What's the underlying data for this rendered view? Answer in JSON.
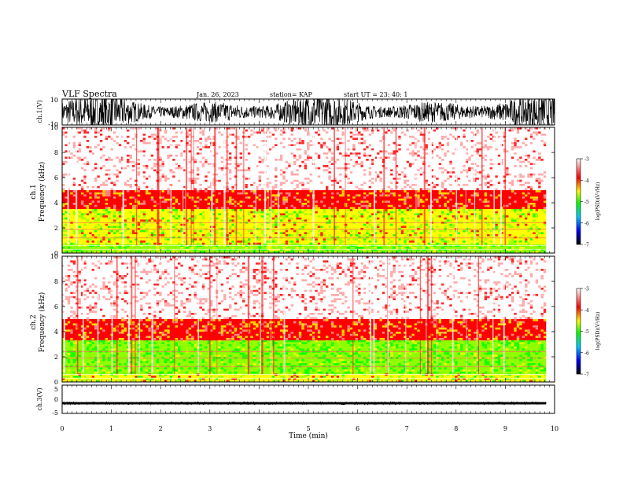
{
  "header": {
    "title": "VLF Spectra",
    "date": "Jan. 26, 2023",
    "station": "station= KAP",
    "start": "start  UT  =   23: 40: 1"
  },
  "chart_data": [
    {
      "type": "line",
      "name": "ch1-waveform",
      "ylabel": "ch.1(V)",
      "ylim": [
        -10,
        10
      ],
      "yticks": [
        10,
        -10
      ],
      "xlim": [
        0,
        10
      ],
      "amplitude_range": [
        -10,
        10
      ]
    },
    {
      "type": "heatmap",
      "name": "ch1-spectrogram",
      "ylabel_line1": "ch.1",
      "ylabel_line2": "Frequency (kHz)",
      "ylim": [
        0,
        10
      ],
      "yticks": [
        0,
        2,
        4,
        6,
        8,
        10
      ],
      "xlim": [
        0,
        9.83
      ],
      "colorbar": {
        "label": "log(PSD)(V²/Hz)",
        "range": [
          -7,
          -3
        ],
        "ticks": [
          -3,
          -4,
          -5,
          -6,
          -7
        ]
      },
      "bands_khz": [
        {
          "from": 0,
          "to": 0.7,
          "level": -5.2
        },
        {
          "from": 0.7,
          "to": 3.5,
          "level": -5.0
        },
        {
          "from": 3.5,
          "to": 5.0,
          "level": -4.2
        },
        {
          "from": 5.0,
          "to": 10,
          "level": -3.4
        }
      ]
    },
    {
      "type": "heatmap",
      "name": "ch2-spectrogram",
      "ylabel_line1": "ch.2",
      "ylabel_line2": "Frequency (kHz)",
      "ylim": [
        0,
        10
      ],
      "yticks": [
        0,
        2,
        4,
        6,
        8,
        10
      ],
      "xlim": [
        0,
        9.83
      ],
      "colorbar": {
        "label": "log(PSD)(V²/Hz)",
        "range": [
          -7,
          -3
        ],
        "ticks": [
          -3,
          -4,
          -5,
          -6,
          -7
        ]
      },
      "bands_khz": [
        {
          "from": 0,
          "to": 0.6,
          "level": -5.0
        },
        {
          "from": 0.6,
          "to": 3.3,
          "level": -5.5
        },
        {
          "from": 3.3,
          "to": 5.0,
          "level": -4.3
        },
        {
          "from": 5.0,
          "to": 10,
          "level": -3.4
        }
      ]
    },
    {
      "type": "line",
      "name": "ch3-waveform",
      "ylabel": "ch.3(V)",
      "ylim": [
        -5,
        5
      ],
      "yticks": [
        5,
        0,
        -5
      ],
      "xlim": [
        0,
        10
      ],
      "level": -1.4,
      "amplitude_range": [
        -1.8,
        -1.0
      ]
    }
  ],
  "x_axis": {
    "label": "Time (min)",
    "ticks": [
      0,
      1,
      2,
      3,
      4,
      5,
      6,
      7,
      8,
      9,
      10
    ],
    "range": [
      0,
      10
    ]
  }
}
